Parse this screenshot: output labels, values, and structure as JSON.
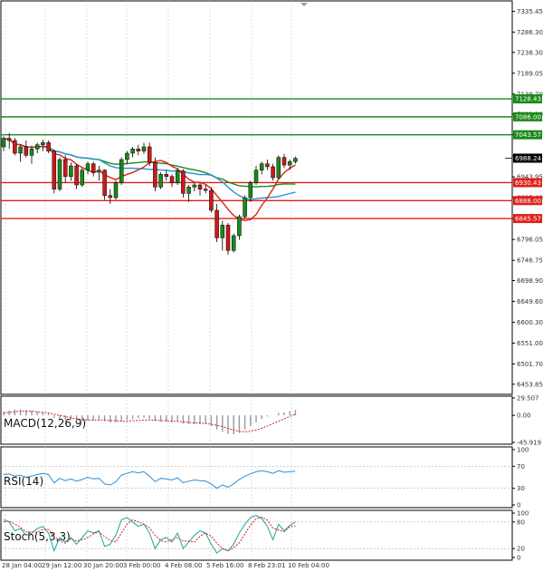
{
  "chart_data": {
    "type": "candlestick",
    "y_ticks": [
      "7335.45",
      "7286.30",
      "7238.30",
      "7189.05",
      "7139.70",
      "7091.90",
      "7043.57",
      "6993.55",
      "6943.95",
      "6895.40",
      "6845.57",
      "6796.05",
      "6746.75",
      "6698.90",
      "6649.60",
      "6600.30",
      "6551.00",
      "6501.70",
      "6453.85"
    ],
    "ylim": [
      6430,
      7360
    ],
    "x_labels": [
      "28 Jan 04:00",
      "29 Jan 12:00",
      "30 Jan 20:00",
      "3 Feb 00:00",
      "4 Feb 08:00",
      "5 Feb 16:00",
      "8 Feb 23:01",
      "10 Feb 04:00"
    ],
    "resistance_levels": [
      {
        "label": "7128.43",
        "value": 7128.43,
        "color": "#1a8a1a"
      },
      {
        "label": "7086.00",
        "value": 7086.0,
        "color": "#1a8a1a"
      },
      {
        "label": "7043.57",
        "value": 7043.57,
        "color": "#1a8a1a"
      }
    ],
    "support_levels": [
      {
        "label": "6930.43",
        "value": 6930.43,
        "color": "#e0201b"
      },
      {
        "label": "6888.00",
        "value": 6888.0,
        "color": "#e0201b"
      },
      {
        "label": "6845.57",
        "value": 6845.57,
        "color": "#e0201b"
      }
    ],
    "current_price": {
      "label": "6988.24",
      "value": 6988.24
    },
    "candles": [
      {
        "o": 7015,
        "h": 7040,
        "l": 7005,
        "c": 7035
      },
      {
        "o": 7035,
        "h": 7048,
        "l": 7010,
        "c": 7030
      },
      {
        "o": 7030,
        "h": 7036,
        "l": 6995,
        "c": 7000
      },
      {
        "o": 7000,
        "h": 7020,
        "l": 6980,
        "c": 7015
      },
      {
        "o": 7015,
        "h": 7030,
        "l": 6990,
        "c": 6995
      },
      {
        "o": 6995,
        "h": 7018,
        "l": 6975,
        "c": 7010
      },
      {
        "o": 7010,
        "h": 7025,
        "l": 7000,
        "c": 7020
      },
      {
        "o": 7020,
        "h": 7032,
        "l": 7005,
        "c": 7025
      },
      {
        "o": 7025,
        "h": 7030,
        "l": 7000,
        "c": 7005
      },
      {
        "o": 7005,
        "h": 7010,
        "l": 6905,
        "c": 6915
      },
      {
        "o": 6915,
        "h": 6990,
        "l": 6910,
        "c": 6985
      },
      {
        "o": 6985,
        "h": 6995,
        "l": 6930,
        "c": 6945
      },
      {
        "o": 6945,
        "h": 6978,
        "l": 6935,
        "c": 6970
      },
      {
        "o": 6970,
        "h": 6975,
        "l": 6915,
        "c": 6925
      },
      {
        "o": 6925,
        "h": 6965,
        "l": 6920,
        "c": 6960
      },
      {
        "o": 6960,
        "h": 6980,
        "l": 6950,
        "c": 6975
      },
      {
        "o": 6975,
        "h": 6980,
        "l": 6945,
        "c": 6955
      },
      {
        "o": 6955,
        "h": 6970,
        "l": 6935,
        "c": 6960
      },
      {
        "o": 6960,
        "h": 6962,
        "l": 6890,
        "c": 6900
      },
      {
        "o": 6900,
        "h": 6915,
        "l": 6880,
        "c": 6895
      },
      {
        "o": 6895,
        "h": 6935,
        "l": 6890,
        "c": 6930
      },
      {
        "o": 6930,
        "h": 6990,
        "l": 6925,
        "c": 6985
      },
      {
        "o": 6985,
        "h": 7005,
        "l": 6975,
        "c": 7000
      },
      {
        "o": 7000,
        "h": 7015,
        "l": 6990,
        "c": 7010
      },
      {
        "o": 7010,
        "h": 7020,
        "l": 6995,
        "c": 7005
      },
      {
        "o": 7005,
        "h": 7025,
        "l": 6998,
        "c": 7015
      },
      {
        "o": 7015,
        "h": 7025,
        "l": 6970,
        "c": 6978
      },
      {
        "o": 6978,
        "h": 6990,
        "l": 6910,
        "c": 6920
      },
      {
        "o": 6920,
        "h": 6955,
        "l": 6915,
        "c": 6950
      },
      {
        "o": 6950,
        "h": 6960,
        "l": 6935,
        "c": 6945
      },
      {
        "o": 6945,
        "h": 6950,
        "l": 6920,
        "c": 6930
      },
      {
        "o": 6930,
        "h": 6965,
        "l": 6925,
        "c": 6958
      },
      {
        "o": 6958,
        "h": 6962,
        "l": 6895,
        "c": 6905
      },
      {
        "o": 6905,
        "h": 6925,
        "l": 6885,
        "c": 6920
      },
      {
        "o": 6920,
        "h": 6930,
        "l": 6910,
        "c": 6925
      },
      {
        "o": 6925,
        "h": 6930,
        "l": 6900,
        "c": 6915
      },
      {
        "o": 6915,
        "h": 6925,
        "l": 6905,
        "c": 6912
      },
      {
        "o": 6912,
        "h": 6920,
        "l": 6860,
        "c": 6865
      },
      {
        "o": 6865,
        "h": 6880,
        "l": 6790,
        "c": 6800
      },
      {
        "o": 6800,
        "h": 6840,
        "l": 6770,
        "c": 6830
      },
      {
        "o": 6830,
        "h": 6835,
        "l": 6760,
        "c": 6770
      },
      {
        "o": 6770,
        "h": 6810,
        "l": 6765,
        "c": 6805
      },
      {
        "o": 6805,
        "h": 6855,
        "l": 6795,
        "c": 6850
      },
      {
        "o": 6850,
        "h": 6900,
        "l": 6845,
        "c": 6895
      },
      {
        "o": 6895,
        "h": 6935,
        "l": 6885,
        "c": 6930
      },
      {
        "o": 6930,
        "h": 6970,
        "l": 6925,
        "c": 6960
      },
      {
        "o": 6960,
        "h": 6980,
        "l": 6950,
        "c": 6975
      },
      {
        "o": 6975,
        "h": 6985,
        "l": 6960,
        "c": 6968
      },
      {
        "o": 6968,
        "h": 6975,
        "l": 6935,
        "c": 6942
      },
      {
        "o": 6942,
        "h": 6995,
        "l": 6938,
        "c": 6990
      },
      {
        "o": 6990,
        "h": 6998,
        "l": 6965,
        "c": 6972
      },
      {
        "o": 6972,
        "h": 6985,
        "l": 6960,
        "c": 6980
      },
      {
        "o": 6980,
        "h": 6992,
        "l": 6975,
        "c": 6988
      }
    ],
    "ma_fast_color": "#e0201b",
    "ma_mid_color": "#2b8fd9",
    "ma_slow_color": "#1a8a1a",
    "macd": {
      "label": "MACD(12,26,9)",
      "ticks": [
        "29.507",
        "0.00",
        "-45.919"
      ],
      "ylim": [
        -45.919,
        29.507
      ],
      "hist": [
        6,
        8,
        10,
        10,
        9,
        8,
        6,
        5,
        3,
        -4,
        -6,
        -8,
        -8,
        -10,
        -10,
        -9,
        -8,
        -7,
        -10,
        -12,
        -12,
        -10,
        -8,
        -6,
        -5,
        -4,
        -6,
        -10,
        -11,
        -11,
        -12,
        -11,
        -14,
        -15,
        -15,
        -15,
        -15,
        -18,
        -24,
        -28,
        -32,
        -32,
        -30,
        -24,
        -18,
        -12,
        -6,
        -2,
        0,
        4,
        5,
        7,
        9
      ],
      "signal": [
        4,
        5,
        6,
        7,
        7,
        7,
        6,
        5,
        4,
        2,
        0,
        -2,
        -4,
        -6,
        -7,
        -8,
        -8,
        -8,
        -8,
        -9,
        -9,
        -10,
        -10,
        -9,
        -9,
        -8,
        -8,
        -8,
        -9,
        -9,
        -10,
        -10,
        -11,
        -12,
        -13,
        -13,
        -14,
        -15,
        -17,
        -19,
        -22,
        -25,
        -27,
        -28,
        -27,
        -25,
        -22,
        -18,
        -14,
        -10,
        -6,
        -2,
        2
      ]
    },
    "rsi": {
      "label": "RSI(14)",
      "ticks": [
        "100",
        "70",
        "30",
        "0"
      ],
      "ylim": [
        0,
        100
      ],
      "values": [
        55,
        56,
        52,
        54,
        50,
        52,
        55,
        57,
        55,
        40,
        48,
        44,
        47,
        43,
        46,
        50,
        47,
        48,
        38,
        36,
        42,
        54,
        57,
        60,
        58,
        60,
        52,
        42,
        48,
        47,
        45,
        49,
        40,
        43,
        45,
        44,
        43,
        38,
        30,
        36,
        32,
        38,
        46,
        52,
        56,
        60,
        62,
        60,
        57,
        62,
        59,
        60,
        61
      ]
    },
    "stoch": {
      "label": "Stoch(5,3,3)",
      "ticks": [
        "100",
        "80",
        "20",
        "0"
      ],
      "ylim": [
        0,
        100
      ],
      "k": [
        85,
        80,
        60,
        65,
        50,
        55,
        65,
        70,
        55,
        15,
        45,
        35,
        45,
        30,
        45,
        60,
        55,
        60,
        25,
        30,
        50,
        85,
        90,
        80,
        70,
        75,
        55,
        20,
        40,
        45,
        35,
        55,
        20,
        35,
        50,
        60,
        55,
        30,
        10,
        20,
        15,
        30,
        55,
        75,
        90,
        95,
        88,
        70,
        40,
        75,
        60,
        72,
        80
      ],
      "d": [
        80,
        82,
        75,
        68,
        58,
        57,
        57,
        63,
        63,
        47,
        38,
        32,
        42,
        37,
        40,
        45,
        53,
        58,
        47,
        38,
        35,
        55,
        75,
        85,
        80,
        75,
        67,
        50,
        38,
        35,
        40,
        45,
        37,
        37,
        35,
        48,
        55,
        48,
        32,
        20,
        15,
        22,
        33,
        53,
        73,
        87,
        91,
        84,
        66,
        62,
        58,
        69,
        71
      ]
    }
  }
}
